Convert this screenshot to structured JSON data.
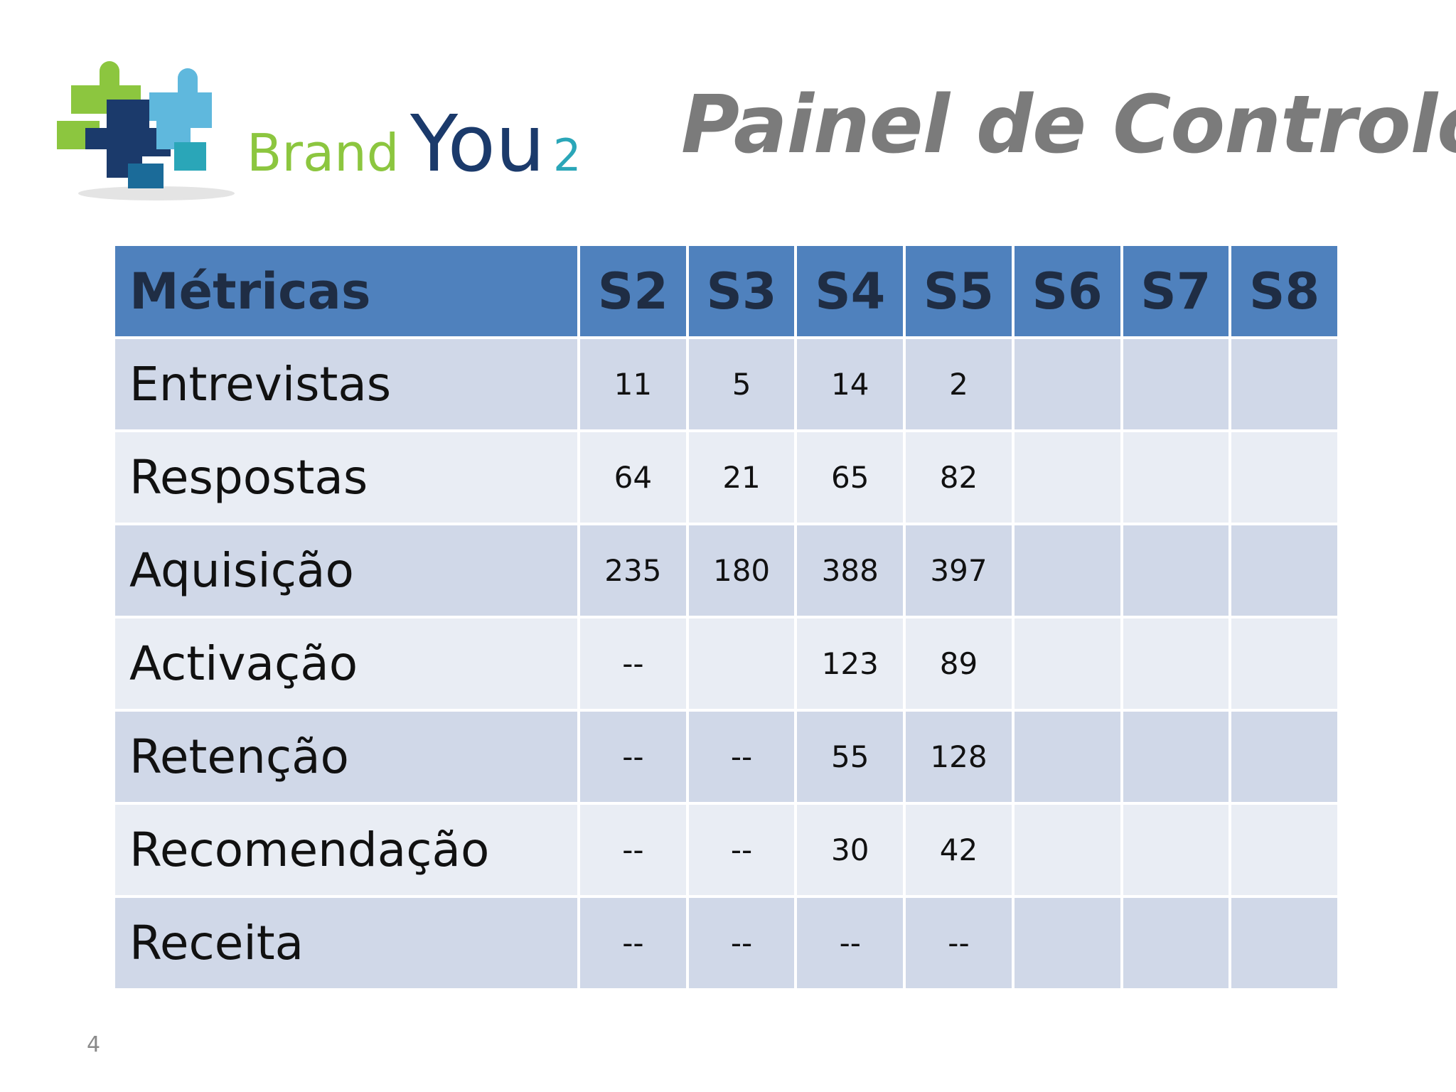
{
  "brand": {
    "name_part1": "Brand",
    "name_part2": "You",
    "name_part3": "2",
    "colors": {
      "green": "#8cc63f",
      "dark_blue": "#1b3a6b",
      "teal": "#2aa6b8",
      "light_blue": "#5fb8dd"
    }
  },
  "title": "Painel de Controlo",
  "table": {
    "headers": [
      "Métricas",
      "S2",
      "S3",
      "S4",
      "S5",
      "S6",
      "S7",
      "S8"
    ],
    "rows": [
      {
        "label": "Entrevistas",
        "values": [
          "11",
          "5",
          "14",
          "2",
          "",
          "",
          ""
        ]
      },
      {
        "label": "Respostas",
        "values": [
          "64",
          "21",
          "65",
          "82",
          "",
          "",
          ""
        ]
      },
      {
        "label": "Aquisição",
        "values": [
          "235",
          "180",
          "388",
          "397",
          "",
          "",
          ""
        ]
      },
      {
        "label": "Activação",
        "values": [
          "--",
          "",
          "123",
          "89",
          "",
          "",
          ""
        ]
      },
      {
        "label": "Retenção",
        "values": [
          "--",
          "--",
          "55",
          "128",
          "",
          "",
          ""
        ]
      },
      {
        "label": "Recomendação",
        "values": [
          "--",
          "--",
          "30",
          "42",
          "",
          "",
          ""
        ]
      },
      {
        "label": "Receita",
        "values": [
          "--",
          "--",
          "--",
          "--",
          "",
          "",
          ""
        ]
      }
    ],
    "colors": {
      "header": "#4f81bd",
      "row_dark": "#d0d8e8",
      "row_light": "#e9edf4"
    }
  },
  "page_number": "4"
}
